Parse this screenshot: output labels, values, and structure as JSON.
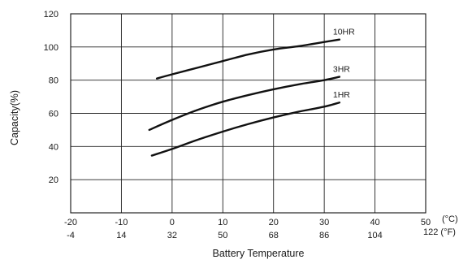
{
  "chart_data": {
    "type": "line",
    "ylabel": "Capacity(%)",
    "xlabel": "Battery Temperature",
    "xunit_celsius": "(°C)",
    "xunit_fahrenheit": "122 (°F)",
    "xlim": [
      -20,
      50
    ],
    "ylim": [
      0,
      120
    ],
    "grid": true,
    "x_ticks_celsius": [
      "-20",
      "-10",
      "0",
      "10",
      "20",
      "30",
      "40",
      "50"
    ],
    "x_ticks_celsius_values": [
      -20,
      -10,
      0,
      10,
      20,
      30,
      40,
      50
    ],
    "x_ticks_fahrenheit": [
      "-4",
      "14",
      "32",
      "50",
      "68",
      "86",
      "104"
    ],
    "y_ticks": [
      "20",
      "40",
      "60",
      "80",
      "100",
      "120"
    ],
    "y_ticks_values": [
      20,
      40,
      60,
      80,
      100,
      120
    ],
    "series": [
      {
        "name": "10HR",
        "x": [
          -3,
          0,
          5,
          10,
          15,
          20,
          25,
          30,
          33
        ],
        "y": [
          81,
          83.5,
          87.5,
          91.5,
          95.5,
          98.5,
          100.5,
          103,
          104.5
        ]
      },
      {
        "name": "3HR",
        "x": [
          -4.5,
          0,
          5,
          10,
          15,
          20,
          25,
          30,
          33
        ],
        "y": [
          50,
          56,
          62,
          67,
          71,
          74.5,
          77.5,
          80,
          82
        ]
      },
      {
        "name": "1HR",
        "x": [
          -4,
          0,
          5,
          10,
          15,
          20,
          25,
          30,
          33
        ],
        "y": [
          34.5,
          38.5,
          44,
          49,
          53.5,
          57.5,
          61,
          64,
          66.5
        ]
      }
    ]
  }
}
